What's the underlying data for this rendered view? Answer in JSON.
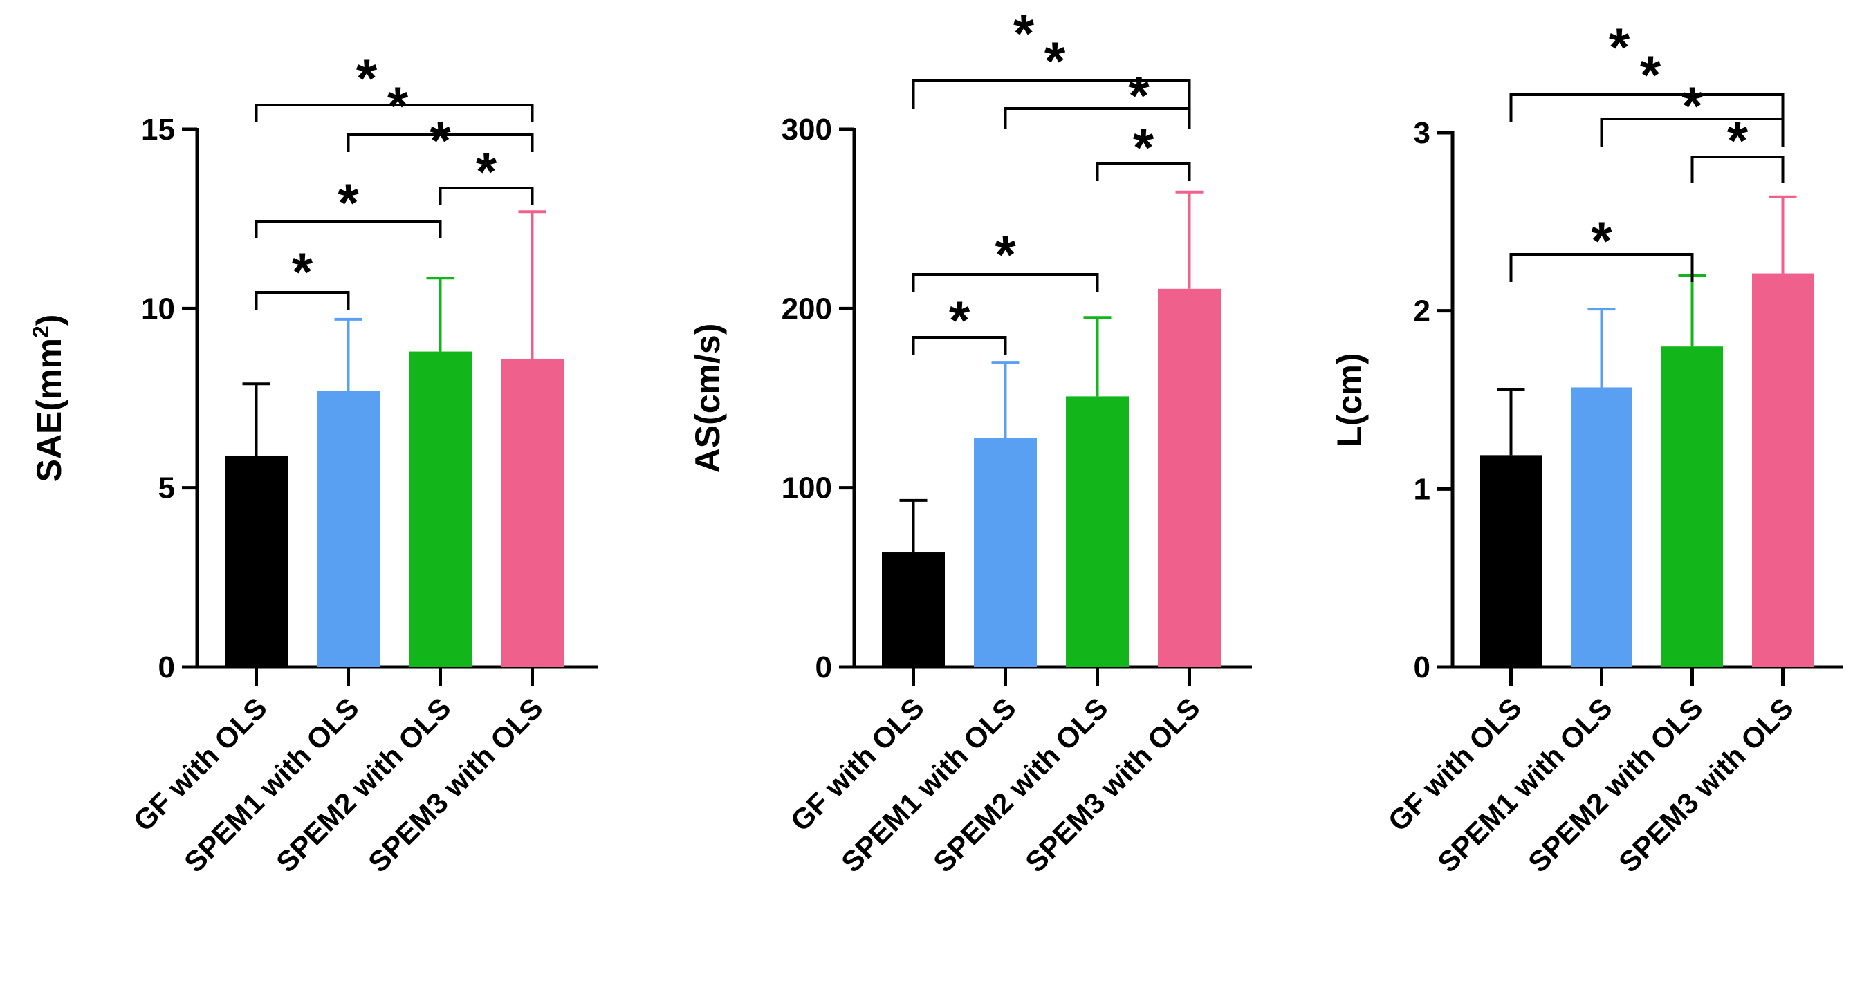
{
  "chart_data": [
    {
      "type": "bar",
      "categories": [
        "GF with OLS",
        "SPEM1 with OLS",
        "SPEM2 with OLS",
        "SPEM3 with OLS"
      ],
      "values": [
        5.9,
        7.7,
        8.8,
        8.6
      ],
      "error": [
        2.0,
        2.0,
        2.05,
        4.1
      ],
      "ylabel": "SAE(mm",
      "ylabel_sup": "2",
      "ylabel_end": ")",
      "ylim": [
        0,
        15
      ],
      "yticks": [
        0,
        5,
        10,
        15
      ],
      "colors": [
        "#000000",
        "#5aa0f2",
        "#12b51a",
        "#f0608c"
      ],
      "significance": [
        {
          "from": 0,
          "to": 1,
          "label": "*"
        },
        {
          "from": 0,
          "to": 2,
          "label": "*"
        },
        {
          "from": 2,
          "to": 3,
          "label": "*"
        },
        {
          "from": 1,
          "to": 3,
          "label": "*"
        },
        {
          "from": 0,
          "to": 3,
          "label": "*"
        }
      ]
    },
    {
      "type": "bar",
      "categories": [
        "GF with OLS",
        "SPEM1 with OLS",
        "SPEM2 with OLS",
        "SPEM3 with OLS"
      ],
      "values": [
        64,
        128,
        151,
        211
      ],
      "error": [
        29,
        42,
        44,
        54
      ],
      "ylabel": "AS(cm/s)",
      "ylim": [
        0,
        300
      ],
      "yticks": [
        0,
        100,
        200,
        300
      ],
      "colors": [
        "#000000",
        "#5aa0f2",
        "#12b51a",
        "#f0608c"
      ],
      "significance": [
        {
          "from": 0,
          "to": 1,
          "label": "*"
        },
        {
          "from": 0,
          "to": 2,
          "label": "*"
        },
        {
          "from": 2,
          "to": 3,
          "label": "*"
        },
        {
          "from": 1,
          "to": 3,
          "label": "*"
        },
        {
          "from": 0,
          "to": 3,
          "label": "*"
        }
      ]
    },
    {
      "type": "bar",
      "categories": [
        "GF with OLS",
        "SPEM1 with OLS",
        "SPEM2 with OLS",
        "SPEM3 with OLS"
      ],
      "values": [
        1.19,
        1.57,
        1.8,
        2.21
      ],
      "error": [
        0.37,
        0.44,
        0.4,
        0.43
      ],
      "ylabel": "L(cm)",
      "ylim": [
        0,
        3
      ],
      "yticks": [
        0,
        1,
        2,
        3
      ],
      "colors": [
        "#000000",
        "#5aa0f2",
        "#12b51a",
        "#f0608c"
      ],
      "significance": [
        {
          "from": 0,
          "to": 2,
          "label": "*"
        },
        {
          "from": 2,
          "to": 3,
          "label": "*"
        },
        {
          "from": 1,
          "to": 3,
          "label": "*"
        },
        {
          "from": 0,
          "to": 3,
          "label": "*"
        }
      ]
    }
  ]
}
